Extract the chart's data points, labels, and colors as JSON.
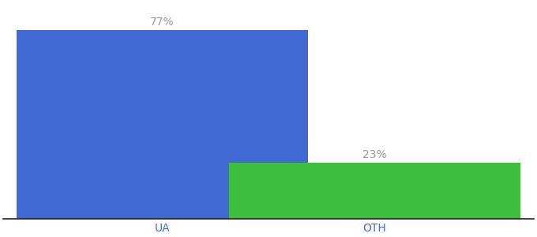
{
  "categories": [
    "UA",
    "OTH"
  ],
  "values": [
    77,
    23
  ],
  "bar_colors": [
    "#4169d4",
    "#3dbf3d"
  ],
  "label_color": "#999999",
  "xlabel_color": "#4169d4",
  "ylim": [
    0,
    88
  ],
  "bar_width": 0.55,
  "label_fontsize": 10,
  "tick_fontsize": 10,
  "background_color": "#ffffff",
  "x_positions": [
    0.3,
    0.7
  ]
}
